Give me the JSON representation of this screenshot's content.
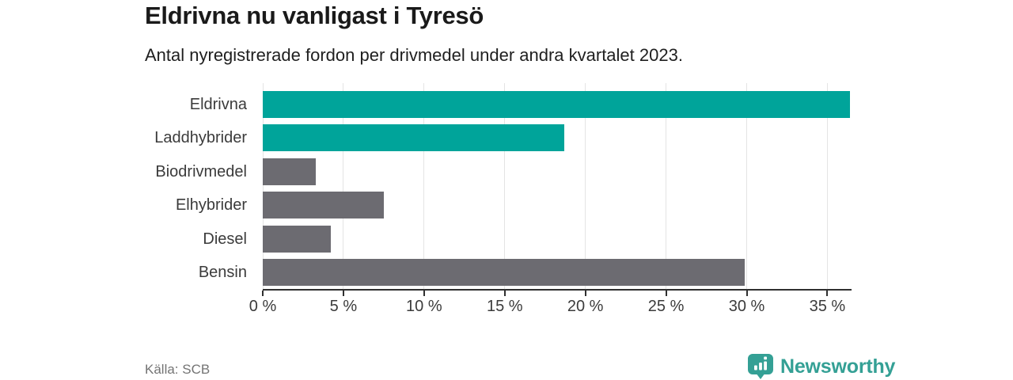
{
  "header": {
    "title": "Eldrivna nu vanligast i Tyresö",
    "subtitle": "Antal nyregistrerade fordon per drivmedel under andra kvartalet 2023."
  },
  "footer": {
    "source": "Källa: SCB",
    "brand_name": "Newsworthy",
    "brand_icon": "newsworthy-pin-barchart-icon"
  },
  "colors": {
    "highlight_bar": "#00a49a",
    "default_bar": "#6c6b71",
    "gridline": "#e4e4e4",
    "axis": "#2f2f2f",
    "brand": "#34a095",
    "title_text": "#1a1a1a",
    "label_text": "#3b3b3b",
    "source_text": "#747474"
  },
  "chart_data": {
    "type": "bar",
    "orientation": "horizontal",
    "title": "Eldrivna nu vanligast i Tyresö",
    "subtitle": "Antal nyregistrerade fordon per drivmedel under andra kvartalet 2023.",
    "categories": [
      "Eldrivna",
      "Laddhybrider",
      "Biodrivmedel",
      "Elhybrider",
      "Diesel",
      "Bensin"
    ],
    "values": [
      36.4,
      18.7,
      3.3,
      7.5,
      4.2,
      29.9
    ],
    "bar_colors": [
      "#00a49a",
      "#00a49a",
      "#6c6b71",
      "#6c6b71",
      "#6c6b71",
      "#6c6b71"
    ],
    "unit": "%",
    "xlim": [
      0,
      36.5
    ],
    "xticks": [
      0,
      5,
      10,
      15,
      20,
      25,
      30,
      35
    ],
    "xtick_labels": [
      "0 %",
      "5 %",
      "10 %",
      "15 %",
      "20 %",
      "25 %",
      "30 %",
      "35 %"
    ],
    "grid": true,
    "legend": false
  }
}
